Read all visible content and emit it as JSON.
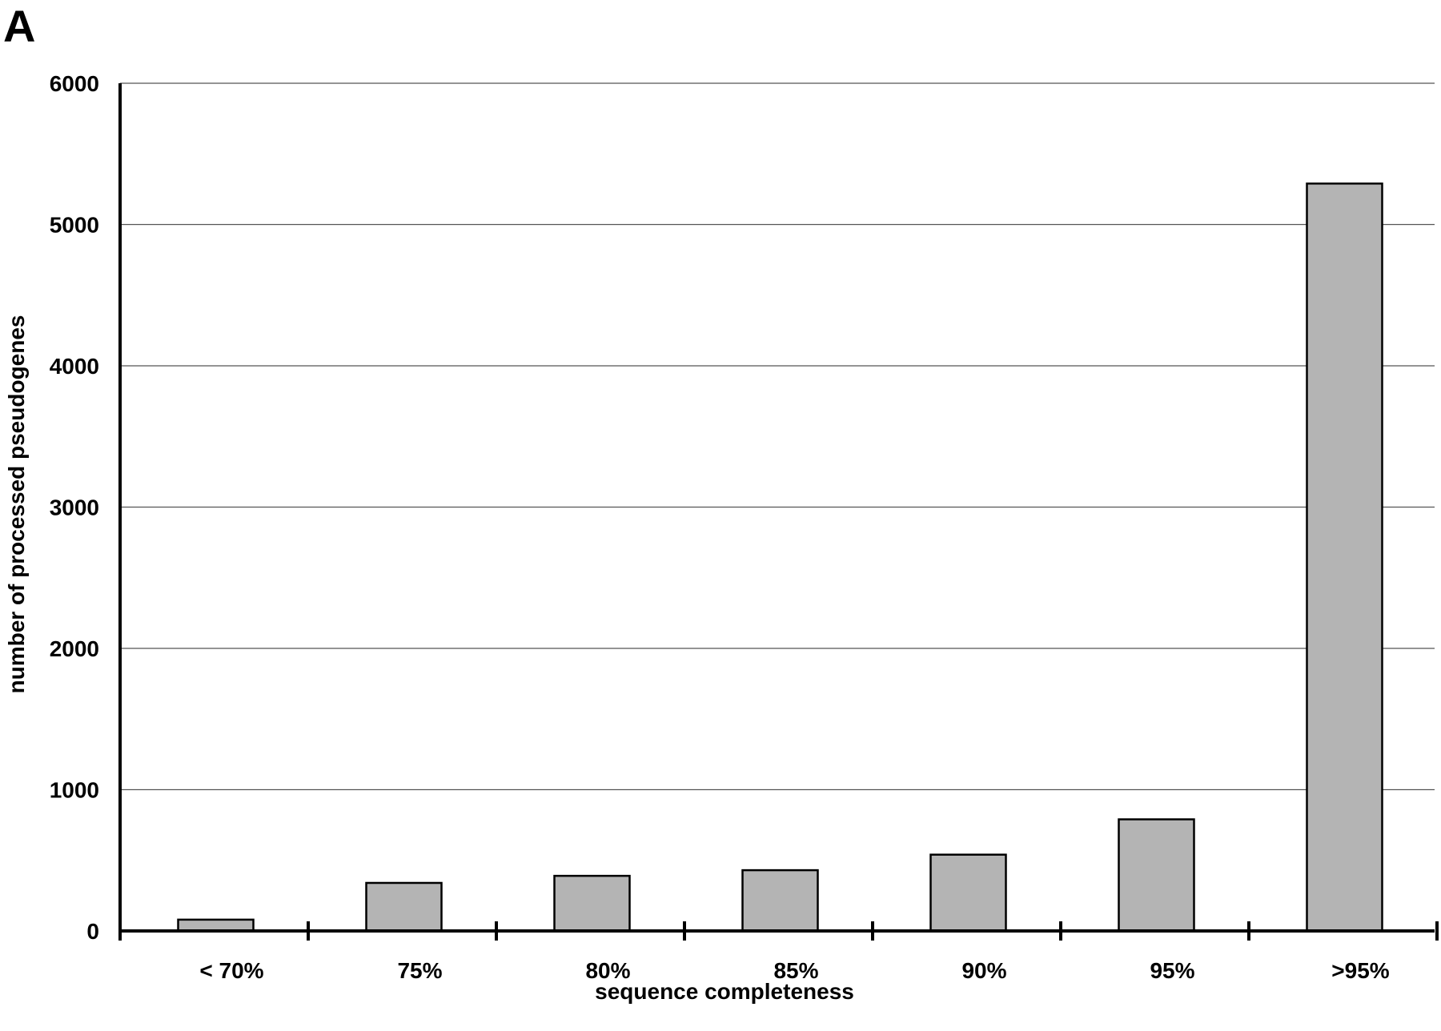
{
  "panel_label": "A",
  "chart_data": {
    "type": "bar",
    "categories": [
      "< 70%",
      "75%",
      "80%",
      "85%",
      "90%",
      "95%",
      ">95%"
    ],
    "values": [
      80,
      340,
      390,
      430,
      540,
      790,
      5290
    ],
    "xlabel": "sequence completeness",
    "ylabel": "number of processed pseudogenes",
    "ylim": [
      0,
      6000
    ],
    "yticks": [
      0,
      1000,
      2000,
      3000,
      4000,
      5000,
      6000
    ],
    "grid": true,
    "legend": "none",
    "colors": {
      "bar_fill": "#b4b4b4",
      "bar_stroke": "#000000",
      "grid": "#555555",
      "axis": "#000000"
    }
  }
}
